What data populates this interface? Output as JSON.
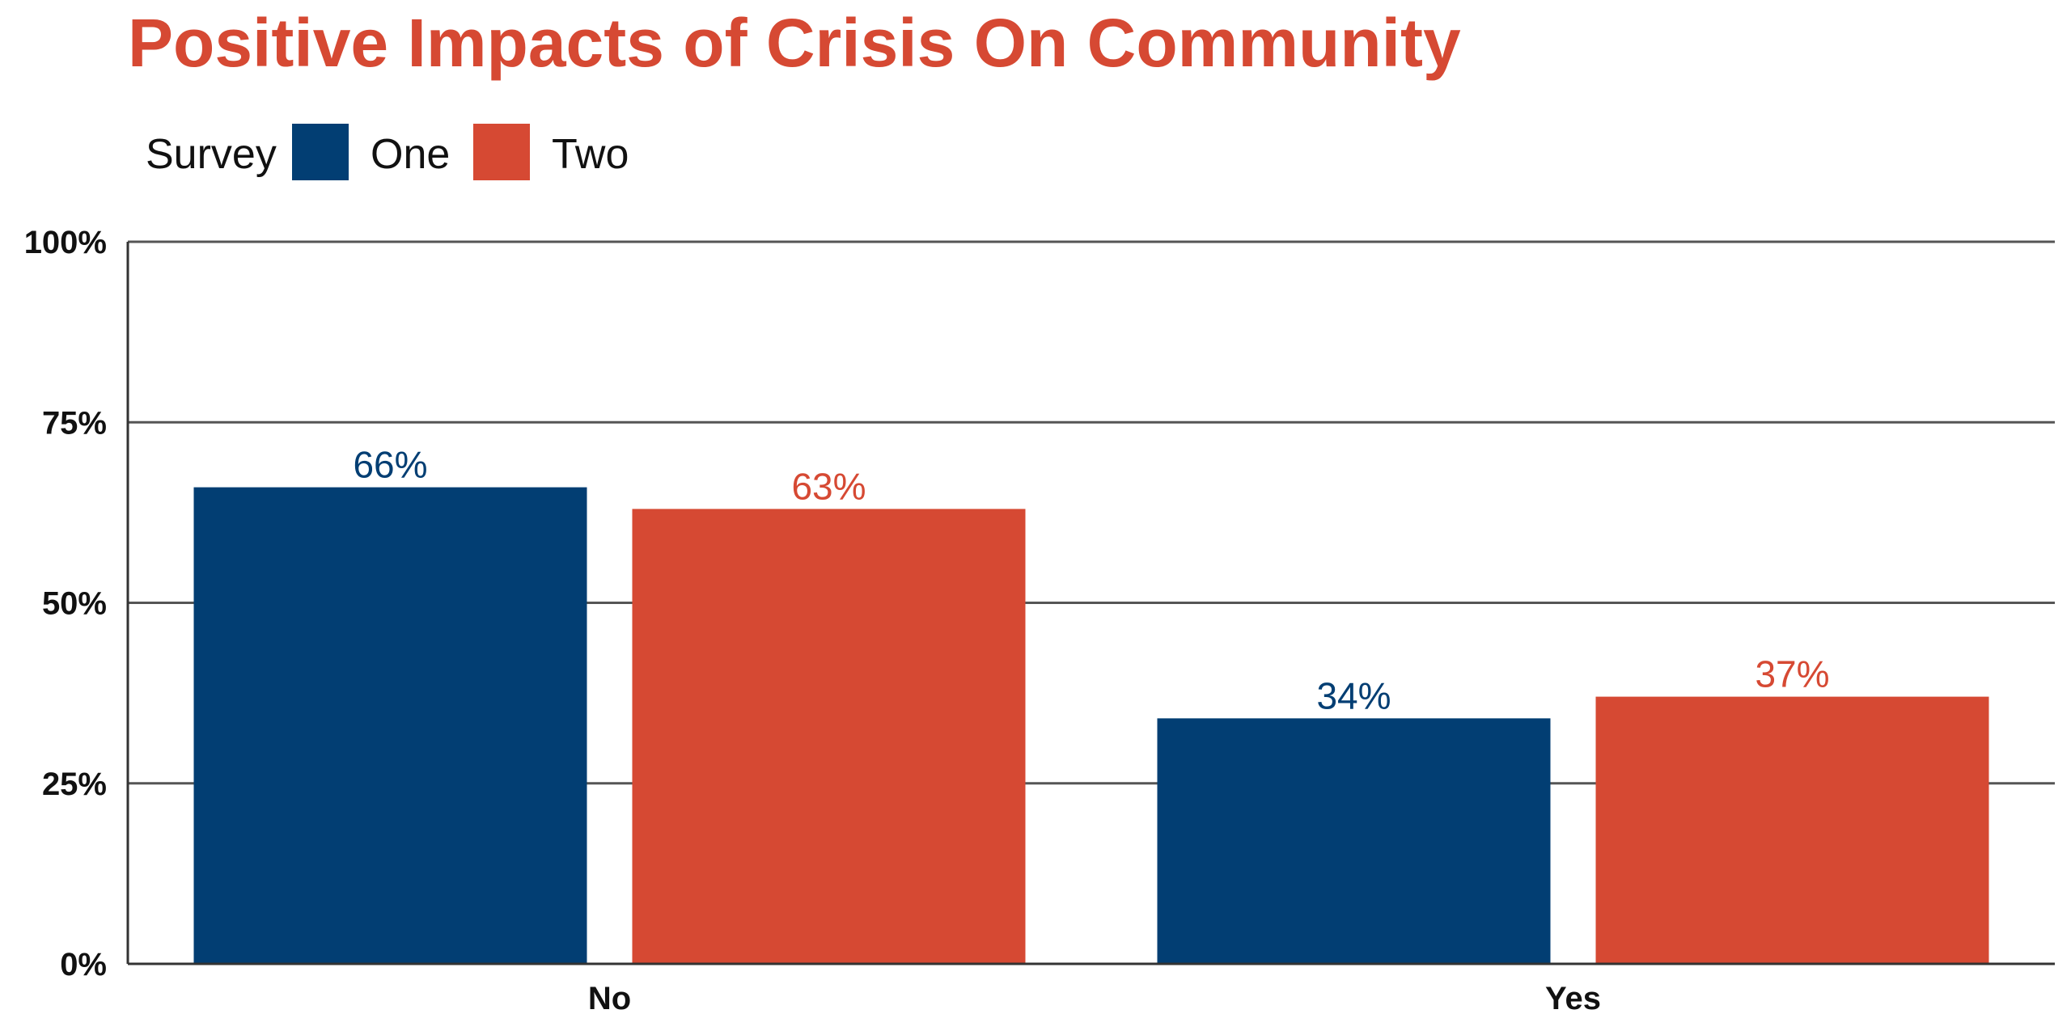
{
  "chart_data": {
    "type": "bar",
    "title": "Positive Impacts of Crisis On Community",
    "legend": {
      "title": "Survey",
      "placement": "top-left"
    },
    "categories": [
      "No",
      "Yes"
    ],
    "series": [
      {
        "name": "One",
        "color": "#023E73",
        "values": [
          66,
          34
        ]
      },
      {
        "name": "Two",
        "color": "#D64933",
        "values": [
          63,
          37
        ]
      }
    ],
    "value_labels": [
      [
        "66%",
        "34%"
      ],
      [
        "63%",
        "37%"
      ]
    ],
    "y_ticks": [
      0,
      25,
      50,
      75,
      100
    ],
    "y_tick_labels": [
      "0%",
      "25%",
      "50%",
      "75%",
      "100%"
    ],
    "ylim": [
      0,
      100
    ],
    "grid": true,
    "colors": {
      "title": "#D64933",
      "grid": "#555555",
      "axis": "#333333"
    }
  }
}
